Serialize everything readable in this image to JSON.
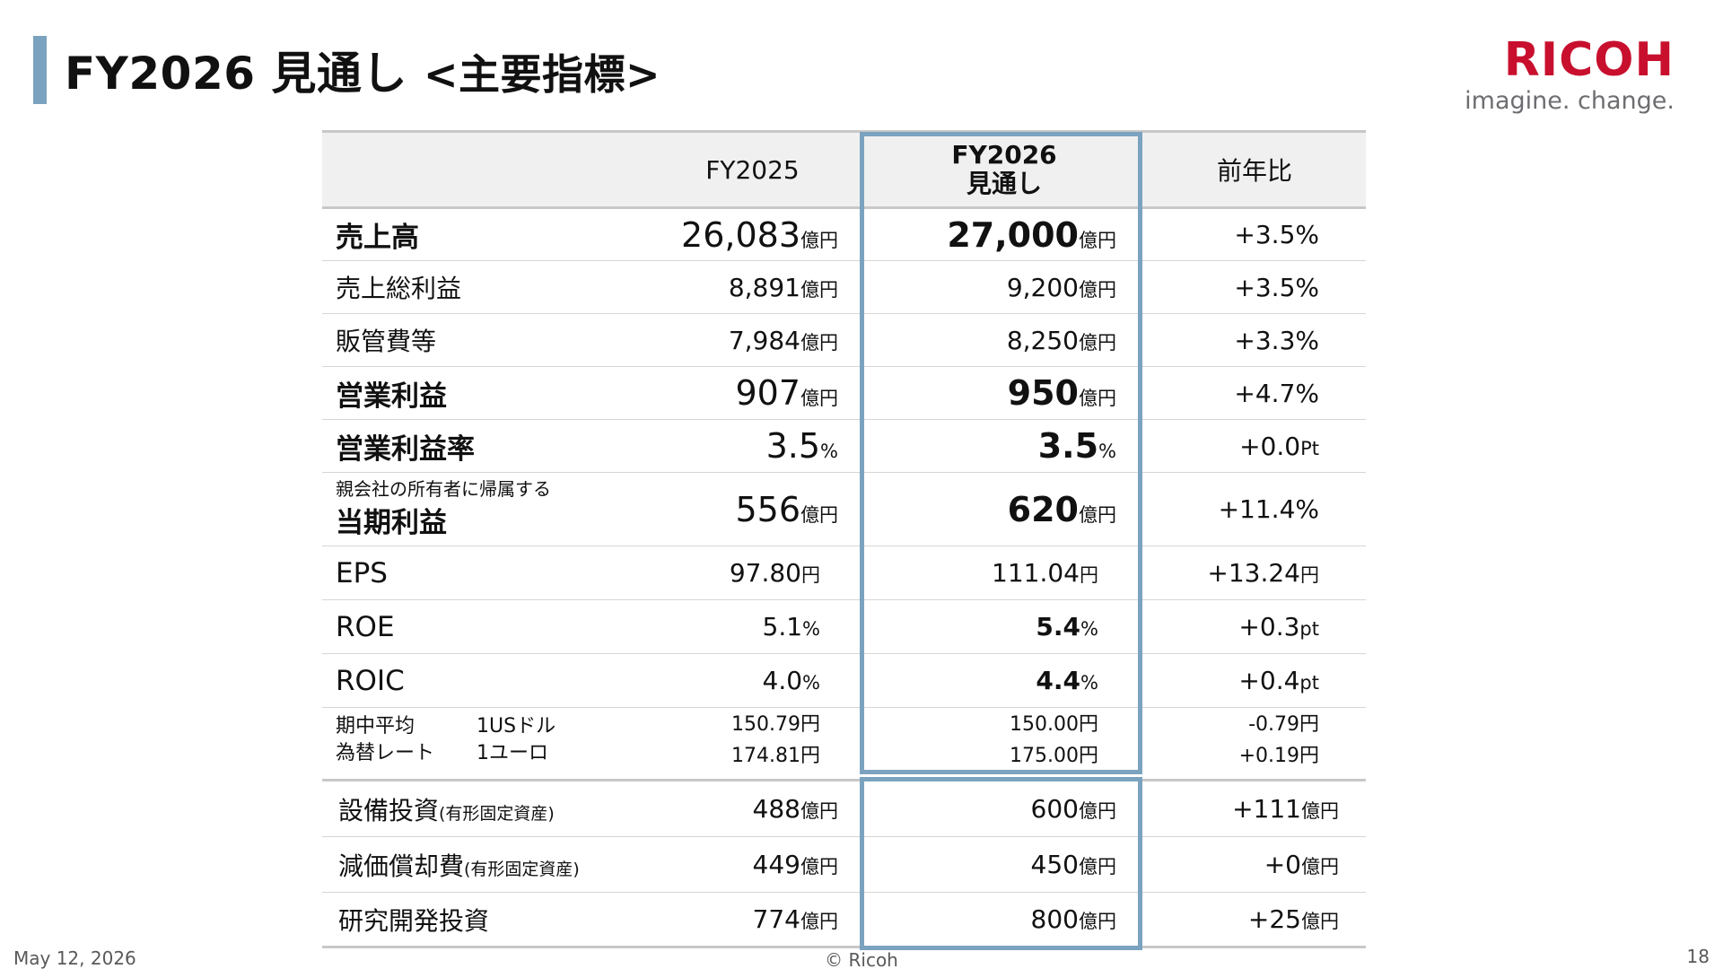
{
  "header": {
    "title": "FY2026 見通し",
    "subtitle": "<主要指標>"
  },
  "logo": {
    "wordmark": "RICOH",
    "tagline": "imagine. change."
  },
  "table": {
    "columns": [
      "FY2025",
      "FY2026",
      "見通し",
      "前年比"
    ],
    "rows": [
      {
        "label": "売上高",
        "fy2025": "26,083",
        "fy2026": "27,000",
        "unit": "億円",
        "yoy": "+3.5%"
      },
      {
        "label": "売上総利益",
        "fy2025": "8,891",
        "fy2026": "9,200",
        "unit": "億円",
        "yoy": "+3.5%"
      },
      {
        "label": "販管費等",
        "fy2025": "7,984",
        "fy2026": "8,250",
        "unit": "億円",
        "yoy": "+3.3%"
      },
      {
        "label": "営業利益",
        "fy2025": "907",
        "fy2026": "950",
        "unit": "億円",
        "yoy": "+4.7%"
      },
      {
        "label": "営業利益率",
        "fy2025": "3.5",
        "fy2026": "3.5",
        "unit": "%",
        "yoy": "+0.0",
        "yoy_unit": "Pt"
      },
      {
        "label_small": "親会社の所有者に帰属する",
        "label": "当期利益",
        "fy2025": "556",
        "fy2026": "620",
        "unit": "億円",
        "yoy": "+11.4%"
      },
      {
        "label": "EPS",
        "fy2025": "97.80",
        "fy2026": "111.04",
        "unit": "円",
        "yoy": "+13.24",
        "yoy_unit": "円"
      },
      {
        "label": "ROE",
        "fy2025": "5.1",
        "fy2026": "5.4",
        "unit": "%",
        "yoy": "+0.3",
        "yoy_unit": "pt"
      },
      {
        "label": "ROIC",
        "fy2025": "4.0",
        "fy2026": "4.4",
        "unit": "%",
        "yoy": "+0.4",
        "yoy_unit": "pt"
      }
    ],
    "fx": {
      "label_line1": "期中平均",
      "label_line2": "為替レート",
      "usd_label": "1USドル",
      "eur_label": "1ユーロ",
      "usd_fy2025": "150.79円",
      "usd_fy2026": "150.00円",
      "usd_yoy": "-0.79円",
      "eur_fy2025": "174.81円",
      "eur_fy2026": "175.00円",
      "eur_yoy": "+0.19円"
    },
    "capex_rows": [
      {
        "label": "設備投資",
        "note": "(有形固定資産)",
        "fy2025": "488",
        "fy2026": "600",
        "unit": "億円",
        "yoy": "+111"
      },
      {
        "label": "減価償却費",
        "note": "(有形固定資産)",
        "fy2025": "449",
        "fy2026": "450",
        "unit": "億円",
        "yoy": "+0"
      },
      {
        "label": "研究開発投資",
        "note": "",
        "fy2025": "774",
        "fy2026": "800",
        "unit": "億円",
        "yoy": "+25"
      }
    ]
  },
  "footer": {
    "date": "May 12, 2026",
    "copyright": "© Ricoh",
    "page": "18"
  },
  "colors": {
    "accent": "#7ba3bf",
    "brand": "#c8102e"
  }
}
